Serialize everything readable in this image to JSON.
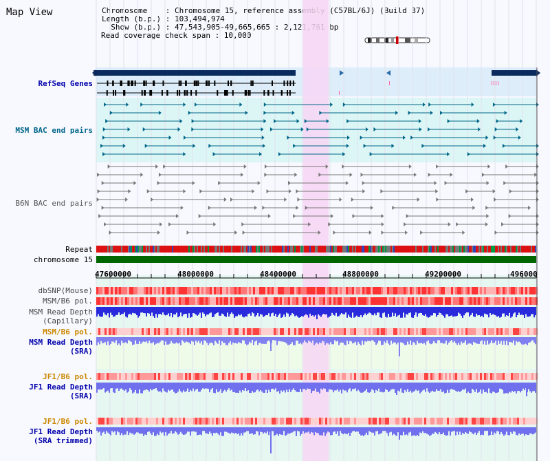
{
  "map_title": "Map View",
  "info": {
    "chromosome_line": "Chromosome    : Chromosome 15, reference assembly (C57BL/6J) (Build 37)",
    "length_line": "Length (b.p.) : 103,494,974",
    "show_line": "  Show (b.p.) : 47,543,905-49,665,665 : 2,121,761 bp",
    "coverage_line": "Read coverage check span : 10,000"
  },
  "tracks": {
    "refseq": "RefSeq Genes",
    "msm_bac": "MSM BAC end pairs",
    "b6n_bac": "B6N BAC end pairs",
    "repeat": "Repeat",
    "chromosome": "chromosome 15",
    "dbsnp": "dbSNP(Mouse)",
    "msm_b6_pol": "MSM/B6 pol.",
    "msm_depth_cap_1": "MSM Read Depth",
    "msm_depth_cap_2": "(Capillary)",
    "msm_b6_pol2": "MSM/B6 pol.",
    "msm_depth_sra_1": "MSM Read Depth",
    "msm_depth_sra_2": "(SRA)",
    "jf1_b6_pol": "JF1/B6 pol.",
    "jf1_depth_sra_1": "JF1 Read Depth",
    "jf1_depth_sra_2": "(SRA)",
    "jf1_b6_pol2": "JF1/B6 pol.",
    "jf1_depth_trim_1": "JF1 Read Depth",
    "jf1_depth_trim_2": "(SRA trimmed)"
  },
  "axis": {
    "ticks": [
      "47600000",
      "48000000",
      "48400000",
      "48800000",
      "49200000",
      "496000"
    ]
  },
  "colors": {
    "refseq_label": "#0000aa",
    "msm_label": "#006688",
    "b6n_label": "#555555",
    "sra_label": "#0000aa",
    "pol_label": "#cc8800",
    "highlight": "#f7d6f5",
    "chromosome_bar": "#006600"
  }
}
